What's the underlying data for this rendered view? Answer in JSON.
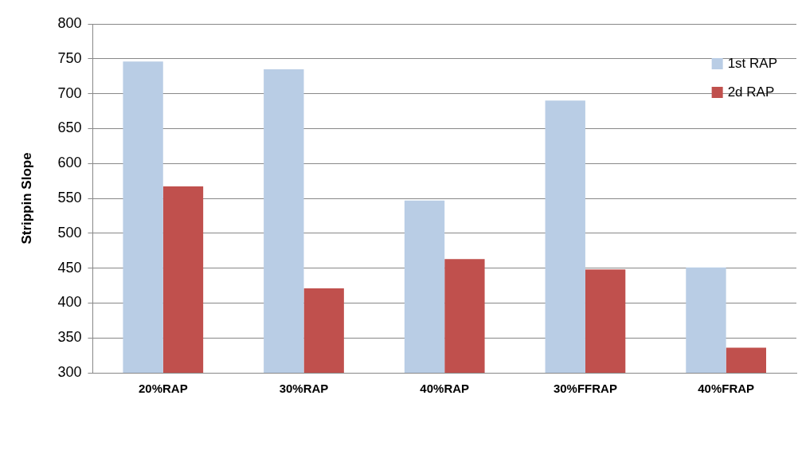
{
  "chart_data": {
    "type": "bar",
    "ylabel": "Strippin Slope",
    "categories": [
      "20%RAP",
      "30%RAP",
      "40%RAP",
      "30%FFRAP",
      "40%FRAP"
    ],
    "series": [
      {
        "name": "1st RAP",
        "color": "#b9cde5",
        "values": [
          746,
          735,
          547,
          690,
          451
        ]
      },
      {
        "name": "2d RAP",
        "color": "#c0504d",
        "values": [
          567,
          421,
          463,
          448,
          336
        ]
      }
    ],
    "ylim": [
      300,
      800
    ],
    "yticks": [
      300,
      350,
      400,
      450,
      500,
      550,
      600,
      650,
      700,
      750,
      800
    ],
    "grid": "y",
    "legend": "top right"
  }
}
